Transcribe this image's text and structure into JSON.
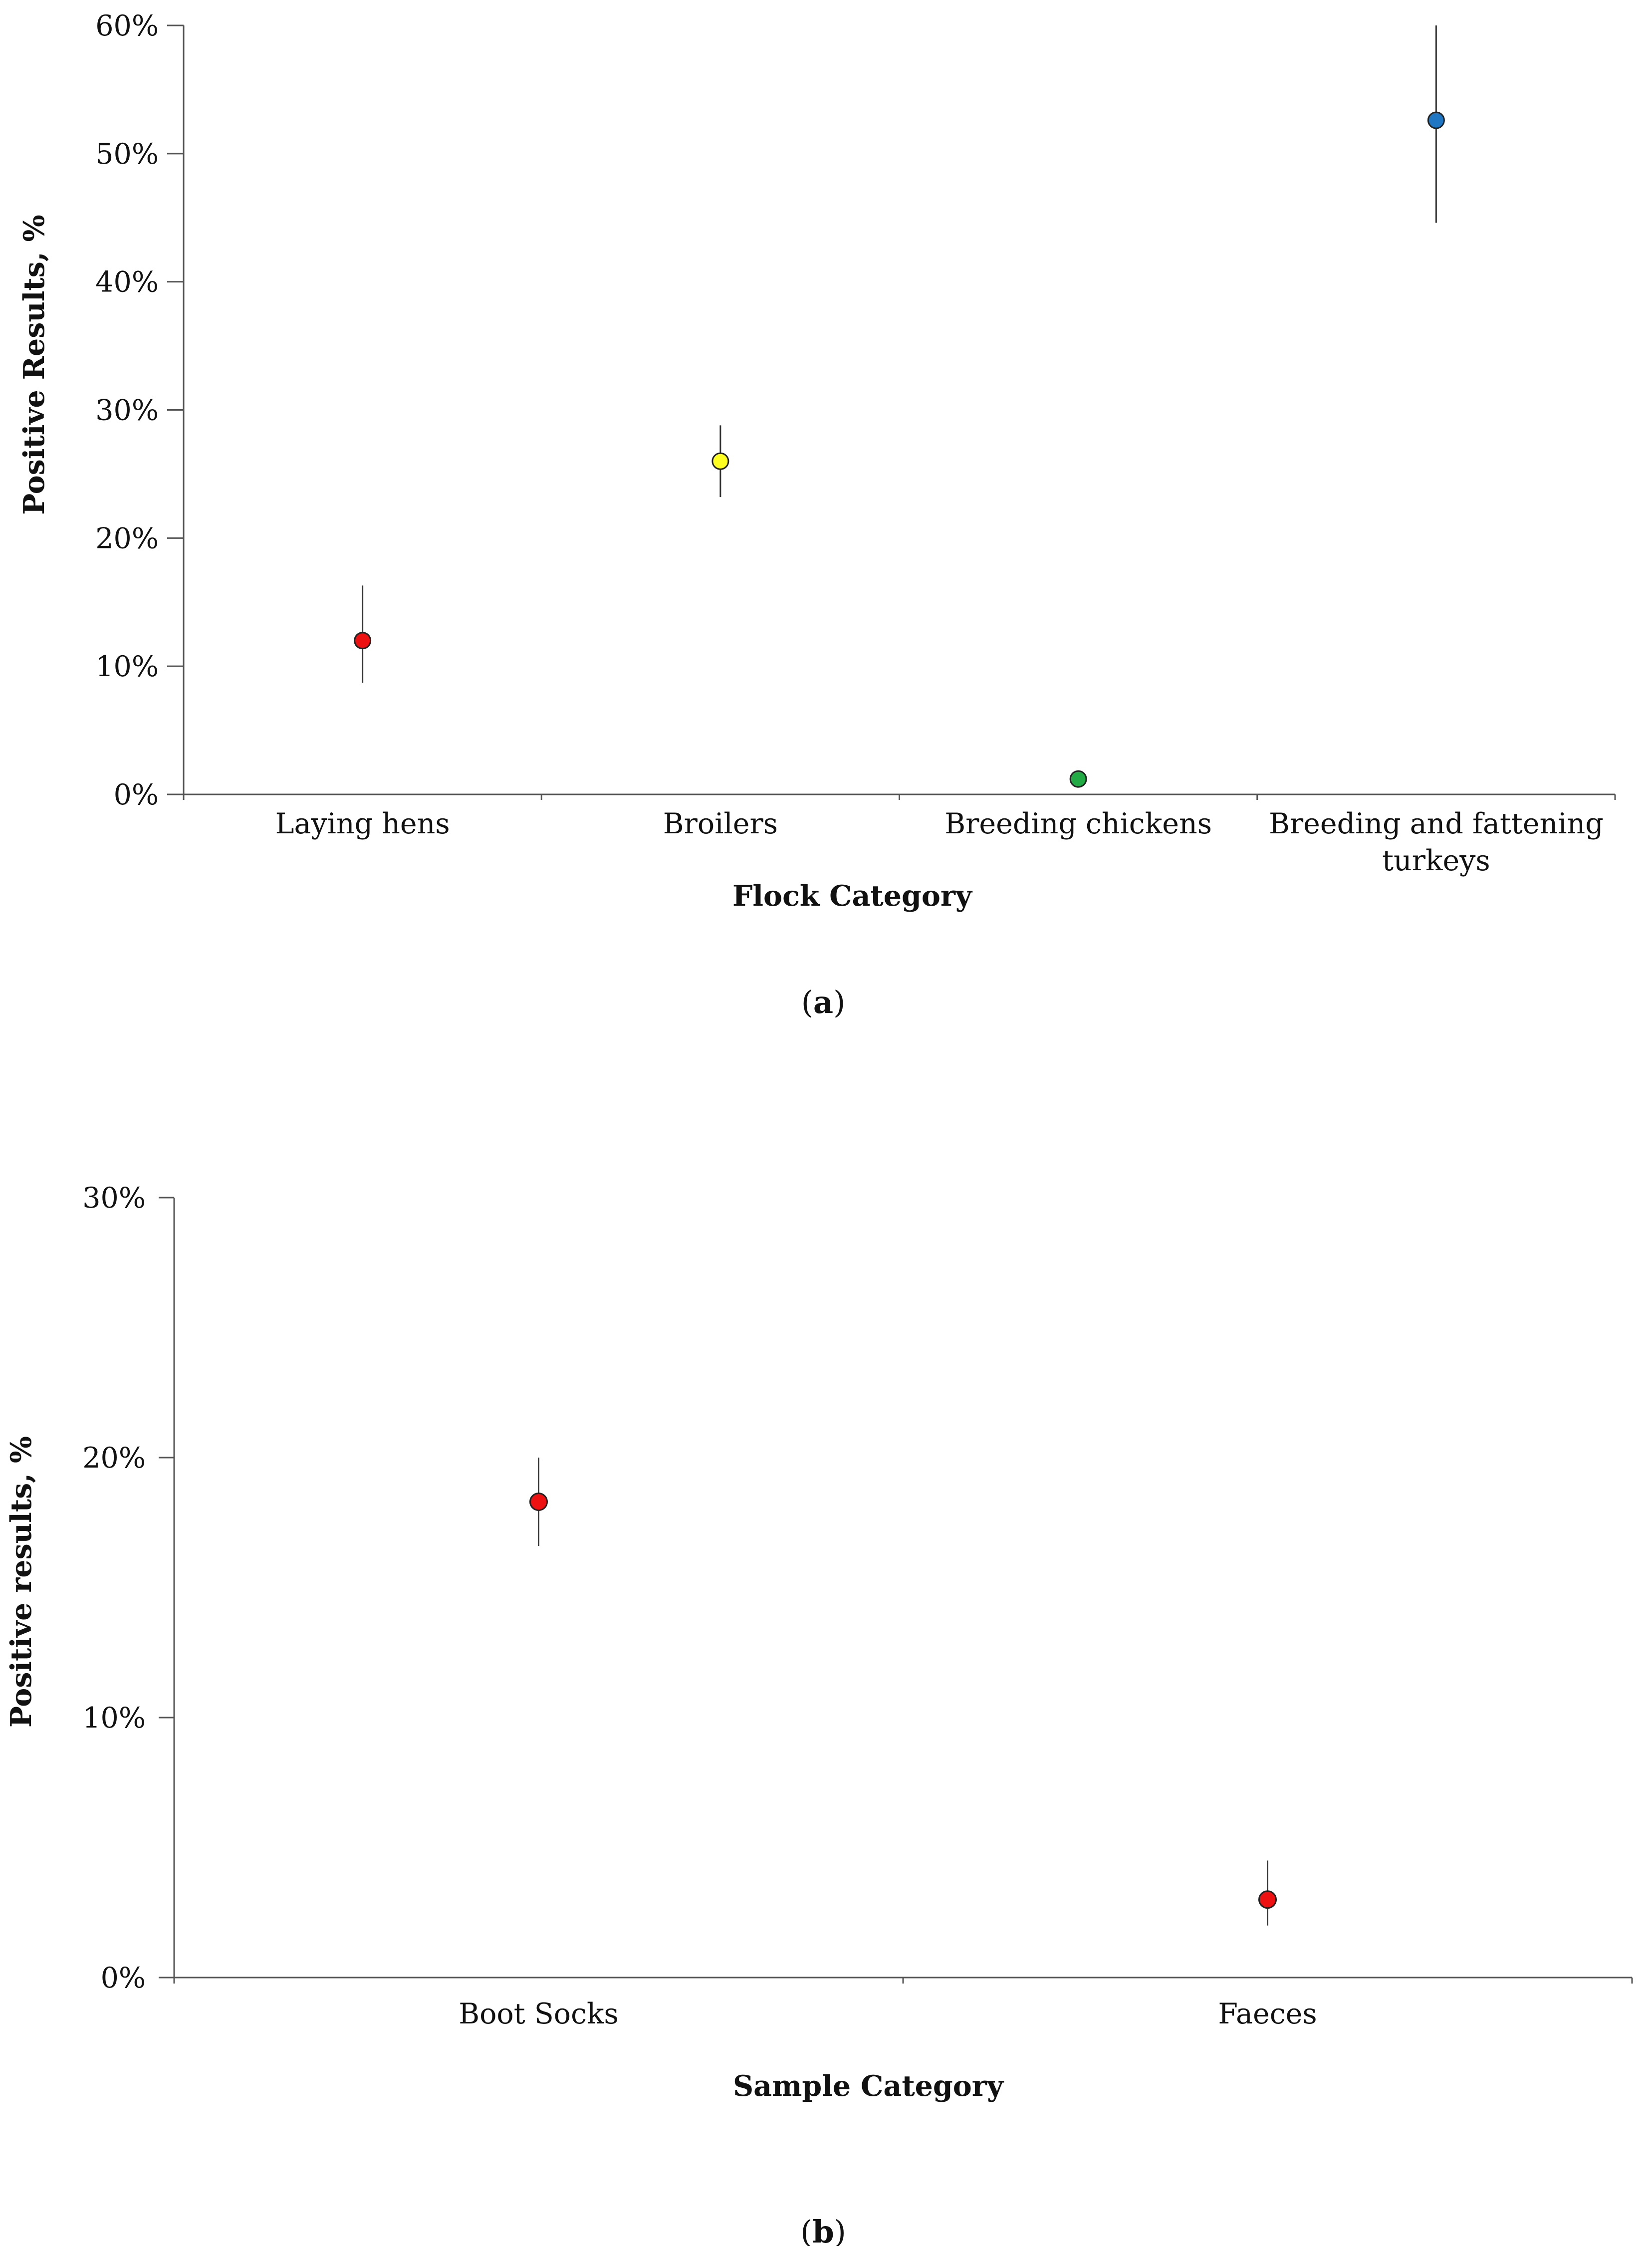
{
  "chart_data": [
    {
      "type": "scatter",
      "panel_label": "(a)",
      "panel_letter": "a",
      "xlabel": "Flock Category",
      "ylabel": "Positive Results, %",
      "categories": [
        "Laying hens",
        "Broilers",
        "Breeding chickens",
        "Breeding and fattening turkeys"
      ],
      "category_lines": [
        [
          "Laying hens"
        ],
        [
          "Broilers"
        ],
        [
          "Breeding chickens"
        ],
        [
          "Breeding and fattening",
          "turkeys"
        ]
      ],
      "y_unit": "percent",
      "ylim": [
        0,
        60
      ],
      "yticks": [
        0,
        10,
        20,
        30,
        40,
        50,
        60
      ],
      "ytick_labels": [
        "0%",
        "10%",
        "20%",
        "30%",
        "40%",
        "50%",
        "60%"
      ],
      "values": [
        12.0,
        26.0,
        1.2,
        52.6
      ],
      "error_low": [
        8.7,
        23.2,
        0.8,
        44.6
      ],
      "error_high": [
        16.3,
        28.8,
        1.8,
        60.0
      ],
      "marker_colors": [
        "#ee1111",
        "#ffff22",
        "#22aa44",
        "#1f77c4"
      ],
      "grid": false,
      "legend": false
    },
    {
      "type": "scatter",
      "panel_label": "(b)",
      "panel_letter": "b",
      "xlabel": "Sample Category",
      "ylabel": "Positive results, %",
      "categories": [
        "Boot Socks",
        "Faeces"
      ],
      "category_lines": [
        [
          "Boot Socks"
        ],
        [
          "Faeces"
        ]
      ],
      "y_unit": "percent",
      "ylim": [
        0,
        30
      ],
      "yticks": [
        0,
        10,
        20,
        30
      ],
      "ytick_labels": [
        "0%",
        "10%",
        "20%",
        "30%"
      ],
      "values": [
        18.3,
        3.0
      ],
      "error_low": [
        16.6,
        2.0
      ],
      "error_high": [
        20.0,
        4.5
      ],
      "marker_colors": [
        "#ee1111",
        "#ee1111"
      ],
      "grid": false,
      "legend": false
    }
  ]
}
